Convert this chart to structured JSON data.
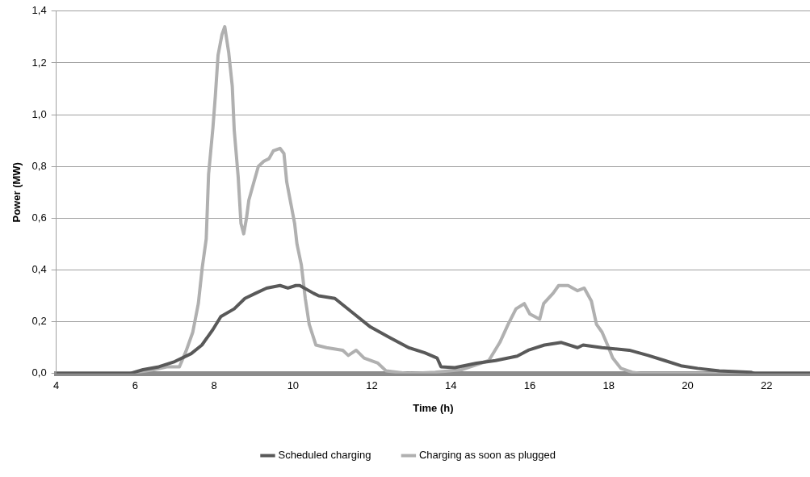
{
  "chart_data": {
    "type": "line",
    "xlabel": "Time (h)",
    "ylabel": "Power (MW)",
    "xlim": [
      4,
      23.1
    ],
    "xticks": [
      4,
      6,
      8,
      10,
      12,
      14,
      16,
      18,
      20,
      22
    ],
    "ylim": [
      0,
      1.4
    ],
    "yticks": [
      {
        "value": 0,
        "label": "0,0"
      },
      {
        "value": 0.2,
        "label": "0,2"
      },
      {
        "value": 0.4,
        "label": "0,4"
      },
      {
        "value": 0.6,
        "label": "0,6"
      },
      {
        "value": 0.8,
        "label": "0,8"
      },
      {
        "value": 1.0,
        "label": "1,0"
      },
      {
        "value": 1.2,
        "label": "1,2"
      },
      {
        "value": 1.4,
        "label": "1,4"
      }
    ],
    "grid": "y",
    "legend": "bottom",
    "marker": "none",
    "line_style": "solid",
    "series": [
      {
        "name": "Scheduled charging",
        "color": "#595959",
        "x": [
          4,
          5.86,
          6.2,
          6.6,
          7.0,
          7.42,
          7.69,
          7.97,
          8.17,
          8.51,
          8.78,
          9.05,
          9.33,
          9.67,
          9.87,
          10.07,
          10.17,
          10.52,
          10.65,
          11.06,
          11.55,
          11.96,
          12.44,
          12.93,
          13.34,
          13.65,
          13.75,
          14.1,
          14.65,
          15.13,
          15.68,
          15.96,
          16.37,
          16.8,
          17.21,
          17.35,
          17.83,
          18.52,
          19.0,
          19.42,
          19.83,
          20.25,
          20.8,
          21.6,
          21.7,
          23.1
        ],
        "values": [
          0,
          0,
          0.015,
          0.026,
          0.046,
          0.077,
          0.11,
          0.17,
          0.22,
          0.25,
          0.29,
          0.31,
          0.33,
          0.34,
          0.33,
          0.34,
          0.34,
          0.31,
          0.3,
          0.29,
          0.23,
          0.18,
          0.14,
          0.1,
          0.08,
          0.06,
          0.026,
          0.023,
          0.04,
          0.05,
          0.067,
          0.09,
          0.11,
          0.12,
          0.1,
          0.11,
          0.1,
          0.09,
          0.07,
          0.05,
          0.03,
          0.02,
          0.01,
          0.005,
          0,
          0
        ]
      },
      {
        "name": "Charging as soon as plugged",
        "color": "#b0b0b0",
        "x": [
          4,
          5.86,
          6.47,
          6.8,
          7.12,
          7.29,
          7.46,
          7.6,
          7.7,
          7.8,
          7.86,
          7.97,
          8.03,
          8.1,
          8.2,
          8.27,
          8.37,
          8.46,
          8.51,
          8.61,
          8.68,
          8.75,
          8.82,
          8.88,
          8.99,
          9.12,
          9.26,
          9.39,
          9.5,
          9.67,
          9.77,
          9.84,
          9.94,
          10.04,
          10.1,
          10.21,
          10.31,
          10.41,
          10.58,
          10.85,
          11.26,
          11.4,
          11.6,
          11.8,
          12.15,
          12.36,
          12.9,
          13.6,
          14.27,
          14.96,
          15.24,
          15.45,
          15.65,
          15.86,
          16.0,
          16.25,
          16.35,
          16.59,
          16.73,
          16.97,
          17.21,
          17.38,
          17.56,
          17.69,
          17.83,
          17.97,
          18.1,
          18.31,
          18.59,
          18.8,
          23.1
        ],
        "values": [
          0,
          0,
          0.015,
          0.026,
          0.026,
          0.087,
          0.16,
          0.27,
          0.41,
          0.52,
          0.77,
          0.95,
          1.07,
          1.23,
          1.31,
          1.34,
          1.24,
          1.11,
          0.94,
          0.76,
          0.58,
          0.54,
          0.6,
          0.67,
          0.73,
          0.8,
          0.82,
          0.83,
          0.86,
          0.87,
          0.85,
          0.74,
          0.66,
          0.58,
          0.5,
          0.42,
          0.29,
          0.19,
          0.11,
          0.1,
          0.09,
          0.07,
          0.09,
          0.06,
          0.04,
          0.01,
          0,
          0.005,
          0.015,
          0.05,
          0.12,
          0.19,
          0.25,
          0.27,
          0.23,
          0.21,
          0.27,
          0.31,
          0.34,
          0.34,
          0.32,
          0.33,
          0.28,
          0.19,
          0.16,
          0.11,
          0.06,
          0.02,
          0.005,
          0,
          0
        ]
      }
    ]
  }
}
